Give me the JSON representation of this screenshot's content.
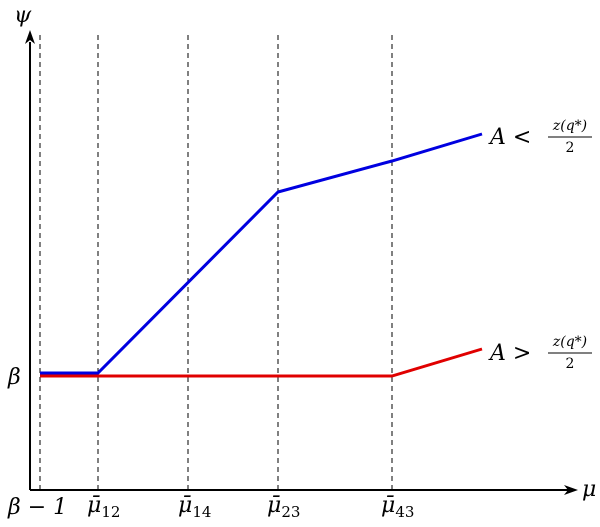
{
  "figure": {
    "x_axis": {
      "label": "μ",
      "ticks": [
        {
          "id": "beta_minus_1",
          "base": "β − 1",
          "sub": ""
        },
        {
          "id": "mu12",
          "base": "μ̄",
          "sub": "12"
        },
        {
          "id": "mu14",
          "base": "μ̄",
          "sub": "14"
        },
        {
          "id": "mu23",
          "base": "μ̄",
          "sub": "23"
        },
        {
          "id": "mu43",
          "base": "μ̄",
          "sub": "43"
        }
      ]
    },
    "y_axis": {
      "label": "ψ",
      "tick_label": "β"
    },
    "curves": [
      {
        "name": "blue",
        "color": "#0000e0",
        "label_lhs": "A <",
        "label_num": "z(q*)",
        "label_den": "2"
      },
      {
        "name": "red",
        "color": "#e00000",
        "label_lhs": "A >",
        "label_num": "z(q*)",
        "label_den": "2"
      }
    ]
  }
}
